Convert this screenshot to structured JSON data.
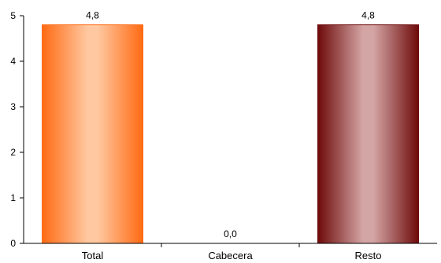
{
  "chart_data": {
    "type": "bar",
    "title": "",
    "xlabel": "",
    "ylabel": "",
    "ylim": [
      0,
      5
    ],
    "yticks": [
      "0",
      "1",
      "2",
      "3",
      "4",
      "5"
    ],
    "categories": [
      "Total",
      "Cabecera",
      "Resto"
    ],
    "values": [
      4.8,
      0.0,
      4.8
    ],
    "value_labels": [
      "4,8",
      "0,0",
      "4,8"
    ],
    "bar_colors": [
      "#ff6a13",
      "#ff6a13",
      "#6e0a0a"
    ],
    "bar_highlight_colors": [
      "#ffc8a0",
      "#ffc8a0",
      "#d4a5a5"
    ],
    "grid": false,
    "legend": "none"
  }
}
